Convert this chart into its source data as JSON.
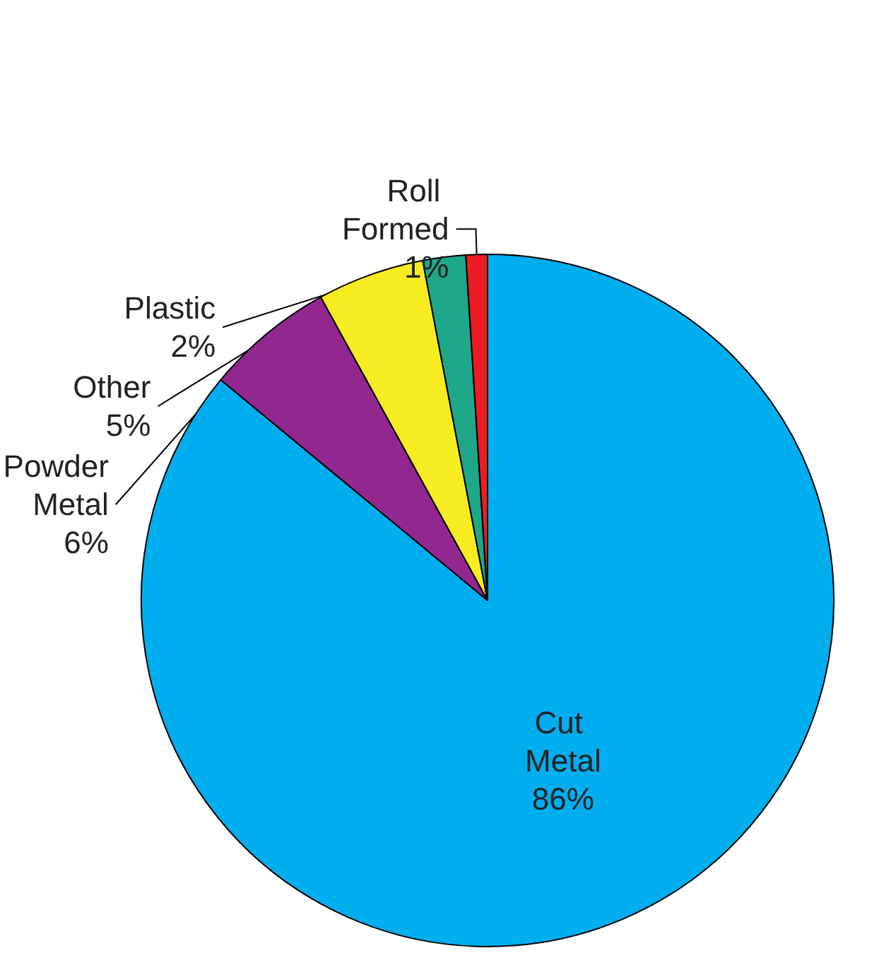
{
  "chart_data": {
    "type": "pie",
    "categories": [
      "Cut Metal",
      "Powder Metal",
      "Other",
      "Plastic",
      "Roll Formed"
    ],
    "values": [
      86,
      6,
      5,
      2,
      1
    ],
    "colors": [
      "#00aeef",
      "#92278f",
      "#f7ec22",
      "#1fa78a",
      "#ed1c24"
    ],
    "value_labels": [
      "86%",
      "6%",
      "5%",
      "2%",
      "1%"
    ]
  }
}
